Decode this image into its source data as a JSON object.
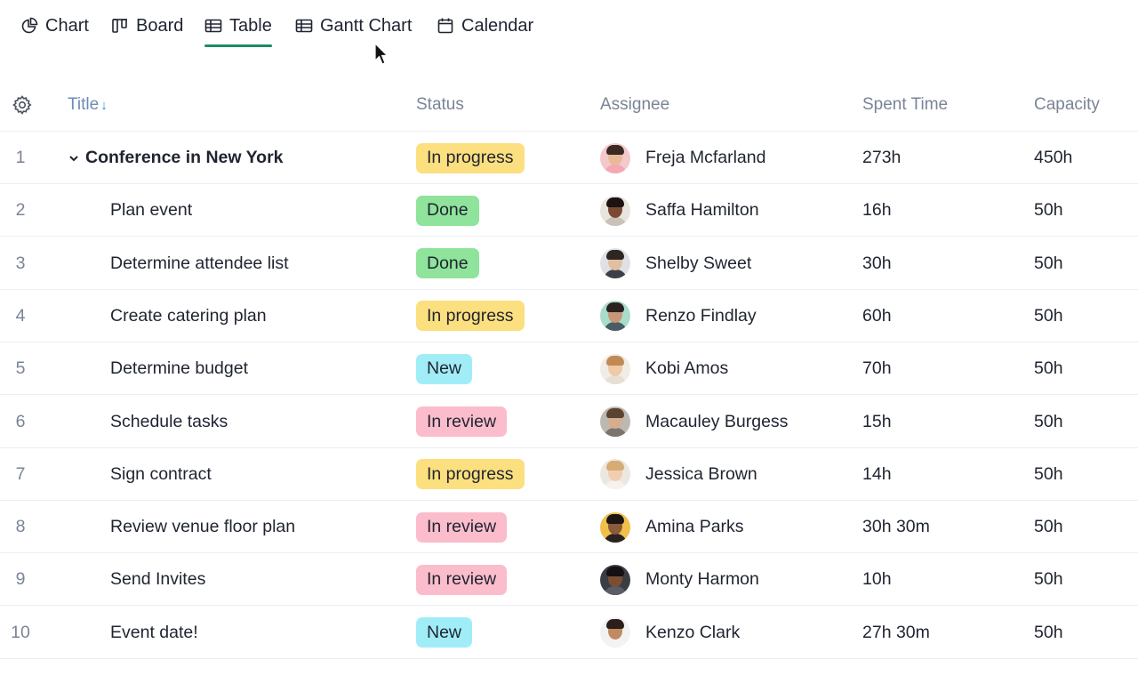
{
  "tabs": [
    {
      "label": "Chart",
      "icon": "pie-chart-icon",
      "active": false
    },
    {
      "label": "Board",
      "icon": "board-icon",
      "active": false
    },
    {
      "label": "Table",
      "icon": "table-icon",
      "active": true
    },
    {
      "label": "Gantt Chart",
      "icon": "gantt-icon",
      "active": false
    },
    {
      "label": "Calendar",
      "icon": "calendar-icon",
      "active": false
    }
  ],
  "accent_color": "#1b8a68",
  "columns": {
    "title": "Title",
    "status": "Status",
    "assignee": "Assignee",
    "spent": "Spent Time",
    "capacity": "Capacity"
  },
  "sort": {
    "column": "title",
    "direction": "↓"
  },
  "status_colors": {
    "In progress": "#fcdf7e",
    "Done": "#8fe39b",
    "New": "#a1edf7",
    "In review": "#fbbccb"
  },
  "rows": [
    {
      "num": "1",
      "title": "Conference in New York",
      "parent": true,
      "status": "In progress",
      "assignee": "Freja Mcfarland",
      "spent": "273h",
      "capacity": "450h",
      "avatar_colors": [
        "#f3c9cc",
        "#e8b99a",
        "#3b2a24",
        "#f3a9b4"
      ]
    },
    {
      "num": "2",
      "title": "Plan event",
      "parent": false,
      "status": "Done",
      "assignee": "Saffa Hamilton",
      "spent": "16h",
      "capacity": "50h",
      "avatar_colors": [
        "#e9e4de",
        "#7a4a32",
        "#1c1412",
        "#c9c2b8"
      ]
    },
    {
      "num": "3",
      "title": "Determine attendee list",
      "parent": false,
      "status": "Done",
      "assignee": "Shelby Sweet",
      "spent": "30h",
      "capacity": "50h",
      "avatar_colors": [
        "#dfe1e4",
        "#e2bfa3",
        "#2d2622",
        "#3d3f46"
      ]
    },
    {
      "num": "4",
      "title": "Create catering plan",
      "parent": false,
      "status": "In progress",
      "assignee": "Renzo Findlay",
      "spent": "60h",
      "capacity": "50h",
      "avatar_colors": [
        "#a9dcc9",
        "#c99777",
        "#2b2220",
        "#4a5c66"
      ]
    },
    {
      "num": "5",
      "title": "Determine budget",
      "parent": false,
      "status": "New",
      "assignee": "Kobi Amos",
      "spent": "70h",
      "capacity": "50h",
      "avatar_colors": [
        "#f1ece6",
        "#f0c9a8",
        "#c08a52",
        "#e6dfd6"
      ]
    },
    {
      "num": "6",
      "title": "Schedule tasks",
      "parent": false,
      "status": "In review",
      "assignee": "Macauley Burgess",
      "spent": "15h",
      "capacity": "50h",
      "avatar_colors": [
        "#bdb8b2",
        "#d6ad8f",
        "#5a4330",
        "#7c756e"
      ]
    },
    {
      "num": "7",
      "title": "Sign contract",
      "parent": false,
      "status": "In progress",
      "assignee": "Jessica Brown",
      "spent": "14h",
      "capacity": "50h",
      "avatar_colors": [
        "#ece7e1",
        "#f1cdb1",
        "#d6ac74",
        "#f5f2ee"
      ]
    },
    {
      "num": "8",
      "title": "Review venue floor plan",
      "parent": false,
      "status": "In review",
      "assignee": "Amina Parks",
      "spent": "30h 30m",
      "capacity": "50h",
      "avatar_colors": [
        "#f0c04a",
        "#8a5a3a",
        "#1d1512",
        "#2a2220"
      ]
    },
    {
      "num": "9",
      "title": "Send Invites",
      "parent": false,
      "status": "In review",
      "assignee": "Monty Harmon",
      "spent": "10h",
      "capacity": "50h",
      "avatar_colors": [
        "#3a3d44",
        "#7b4e33",
        "#151012",
        "#5a5d66"
      ]
    },
    {
      "num": "10",
      "title": "Event date!",
      "parent": false,
      "status": "New",
      "assignee": "Kenzo Clark",
      "spent": "27h 30m",
      "capacity": "50h",
      "avatar_colors": [
        "#f2f2f2",
        "#c08a62",
        "#2a1f1a",
        "#f3f3f3"
      ]
    }
  ]
}
